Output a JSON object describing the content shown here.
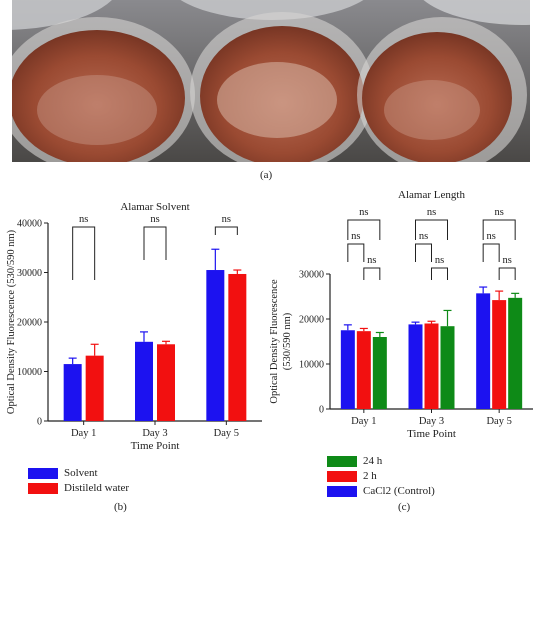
{
  "captions": {
    "a": "(a)",
    "b": "(b)",
    "c": "(c)"
  },
  "photo": {
    "description_colors": {
      "liquid": "#9a4a32",
      "background": "#5e5b58",
      "glass": "#cfd0d3"
    }
  },
  "colors": {
    "blue": "#1c12f0",
    "red": "#f21010",
    "green": "#0e8a17"
  },
  "chart_data": [
    {
      "type": "bar",
      "title": "Alamar Solvent",
      "xlabel": "Time Point",
      "ylabel": "Optical Density Fluorescence (530/590 nm)",
      "categories": [
        "Day 1",
        "Day 3",
        "Day 5"
      ],
      "ylim": [
        0,
        40000
      ],
      "yticks": [
        "0",
        "10000",
        "20000",
        "30000",
        "40000"
      ],
      "series": [
        {
          "name": "Solvent",
          "color": "#1c12f0",
          "values": [
            11500,
            16000,
            30500
          ],
          "errors": [
            1200,
            2000,
            4200
          ]
        },
        {
          "name": "Distileld water",
          "color": "#f21010",
          "values": [
            13200,
            15500,
            29700
          ],
          "errors": [
            2300,
            600,
            800
          ]
        }
      ],
      "significance": [
        "ns",
        "ns",
        "ns"
      ],
      "legend_position": "bottom-left"
    },
    {
      "type": "bar",
      "title": "Alamar Length",
      "xlabel": "Time Point",
      "ylabel": "Optical Density Fluorescence (530/590 nm)",
      "categories": [
        "Day 1",
        "Day 3",
        "Day 5"
      ],
      "ylim": [
        0,
        30000
      ],
      "yticks": [
        "0",
        "10000",
        "20000",
        "30000"
      ],
      "series": [
        {
          "name": "CaCl2 (Control)",
          "color": "#1c12f0",
          "values": [
            17500,
            18800,
            25700
          ],
          "errors": [
            1200,
            500,
            1400
          ]
        },
        {
          "name": "2 h",
          "color": "#f21010",
          "values": [
            17300,
            19000,
            24200
          ],
          "errors": [
            600,
            500,
            2000
          ]
        },
        {
          "name": "24 h",
          "color": "#0e8a17",
          "values": [
            16000,
            18400,
            24700
          ],
          "errors": [
            1000,
            3500,
            1000
          ]
        }
      ],
      "significance": [
        "ns",
        "ns",
        "ns",
        "ns",
        "ns",
        "ns",
        "ns",
        "ns",
        "ns"
      ],
      "legend_position": "bottom-left",
      "legend_order": [
        "24 h",
        "2 h",
        "CaCl2 (Control)"
      ]
    }
  ]
}
